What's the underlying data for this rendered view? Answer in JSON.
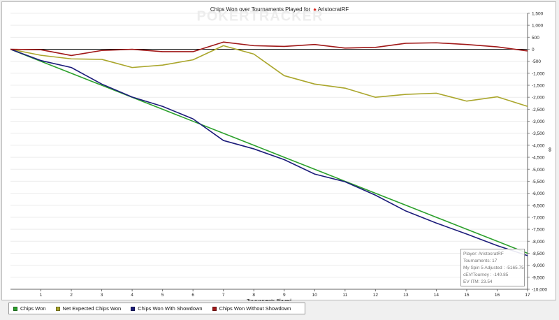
{
  "chart_data": {
    "type": "line",
    "title_prefix": "Chips Won over Tournaments Played for",
    "player_name": "AristocratRF",
    "watermark": "POKERTRACKER",
    "xlabel": "Tournaments Played",
    "ylabel": "$",
    "xlim": [
      0,
      17
    ],
    "ylim": [
      -10000,
      1500
    ],
    "y_tick_step": 500,
    "y_axis_position": "right",
    "grid": "horizontal",
    "legend_position": "bottom-left",
    "categories": [
      0,
      1,
      2,
      3,
      4,
      5,
      6,
      7,
      8,
      9,
      10,
      11,
      12,
      13,
      14,
      15,
      16,
      17
    ],
    "series": [
      {
        "name": "Chips Won",
        "color": "#2ca02c",
        "values": [
          0,
          -500,
          -1000,
          -1500,
          -2000,
          -2500,
          -3000,
          -3500,
          -4000,
          -4500,
          -5000,
          -5500,
          -6000,
          -6500,
          -7000,
          -7500,
          -8000,
          -8500
        ]
      },
      {
        "name": "Net Expected Chips Won",
        "color": "#aaa62c",
        "values": [
          0,
          -250,
          -400,
          -420,
          -760,
          -660,
          -440,
          150,
          -200,
          -1100,
          -1450,
          -1620,
          -2000,
          -1880,
          -1830,
          -2160,
          -1980,
          -2380
        ]
      },
      {
        "name": "Chips Won With Showdown",
        "color": "#1c1c7a",
        "values": [
          0,
          -470,
          -760,
          -1450,
          -1990,
          -2380,
          -2900,
          -3800,
          -4150,
          -4600,
          -5200,
          -5520,
          -6080,
          -6740,
          -7240,
          -7700,
          -8180,
          -8600
        ]
      },
      {
        "name": "Chips Won Without Showdown",
        "color": "#a01818",
        "values": [
          0,
          -20,
          -260,
          -50,
          0,
          -100,
          -100,
          300,
          150,
          120,
          200,
          50,
          80,
          250,
          270,
          200,
          100,
          -70
        ]
      }
    ]
  },
  "info_box": {
    "player": "Player: AristocratRF",
    "tournaments": "Tournaments: 17",
    "adjusted": "My Spin 5 Adjusted : -5165.75",
    "cev": "cEV/Tourney : -140.85",
    "ev_itm": "EV ITM: 23.54"
  }
}
